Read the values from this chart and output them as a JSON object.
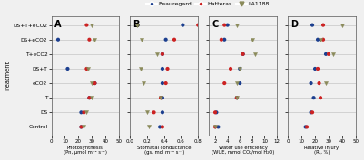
{
  "treatments": [
    "DS+T+eCO2",
    "DS+eCO2",
    "T+eCO2",
    "DS+T",
    "eCO2",
    "T",
    "DS",
    "Control"
  ],
  "panel_A": {
    "xlabel": "Photosynthesis\n(Pn, μmol m⁻² s⁻¹)",
    "xlim": [
      0,
      50
    ],
    "xticks": [
      0,
      10,
      20,
      30,
      40,
      50
    ],
    "Beauregard": [
      null,
      5.0,
      null,
      12.0,
      32.0,
      28.0,
      22.0,
      22.0
    ],
    "Hatteras": [
      26.0,
      28.0,
      null,
      26.0,
      32.0,
      28.0,
      24.0,
      22.0
    ],
    "LA1188": [
      30.0,
      32.0,
      null,
      27.0,
      30.0,
      30.0,
      26.0,
      24.0
    ]
  },
  "panel_B": {
    "xlabel": "Stomatal conductance\n(gs, mol m⁻² s⁻¹)",
    "xlim": [
      0.0,
      0.8
    ],
    "xticks": [
      0.0,
      0.2,
      0.4,
      0.6,
      0.8
    ],
    "Beauregard": [
      0.62,
      0.42,
      0.38,
      0.38,
      0.38,
      0.38,
      0.38,
      0.35
    ],
    "Hatteras": [
      0.8,
      0.52,
      0.38,
      0.44,
      0.42,
      0.36,
      0.28,
      0.38
    ],
    "LA1188": [
      0.08,
      0.14,
      0.32,
      0.12,
      0.16,
      0.36,
      0.2,
      0.22
    ]
  },
  "panel_C": {
    "xlabel": "Water use efficiency\n(WUE, mmol CO₂/mol H₂O)",
    "xlim": [
      1.0,
      12.0
    ],
    "xticks": [
      2,
      4,
      6,
      8,
      10,
      12
    ],
    "Beauregard": [
      4.0,
      3.5,
      6.5,
      6.0,
      6.0,
      5.5,
      2.2,
      2.5
    ],
    "Hatteras": [
      3.5,
      3.0,
      6.5,
      4.5,
      3.5,
      5.5,
      2.0,
      2.0
    ],
    "LA1188": [
      5.5,
      8.0,
      8.5,
      6.0,
      5.5,
      5.5,
      null,
      2.0
    ]
  },
  "panel_D": {
    "xlabel": "Relative injury\n(RI, %)",
    "xlim": [
      0,
      50
    ],
    "xticks": [
      0,
      10,
      20,
      30,
      40,
      50
    ],
    "Beauregard": [
      18.0,
      22.0,
      28.0,
      20.0,
      17.0,
      19.0,
      17.0,
      13.0
    ],
    "Hatteras": [
      26.0,
      26.0,
      30.0,
      22.0,
      23.0,
      24.0,
      18.0,
      14.0
    ],
    "LA1188": [
      40.0,
      24.0,
      33.0,
      null,
      28.0,
      null,
      null,
      null
    ]
  },
  "colors": {
    "Beauregard": "#1c3f8f",
    "Hatteras": "#cc2222",
    "LA1188": "#8a8a5a"
  },
  "panel_labels": [
    "A",
    "B",
    "C",
    "D"
  ],
  "ylabel": "Treatment",
  "background_color": "#f5f5f5"
}
